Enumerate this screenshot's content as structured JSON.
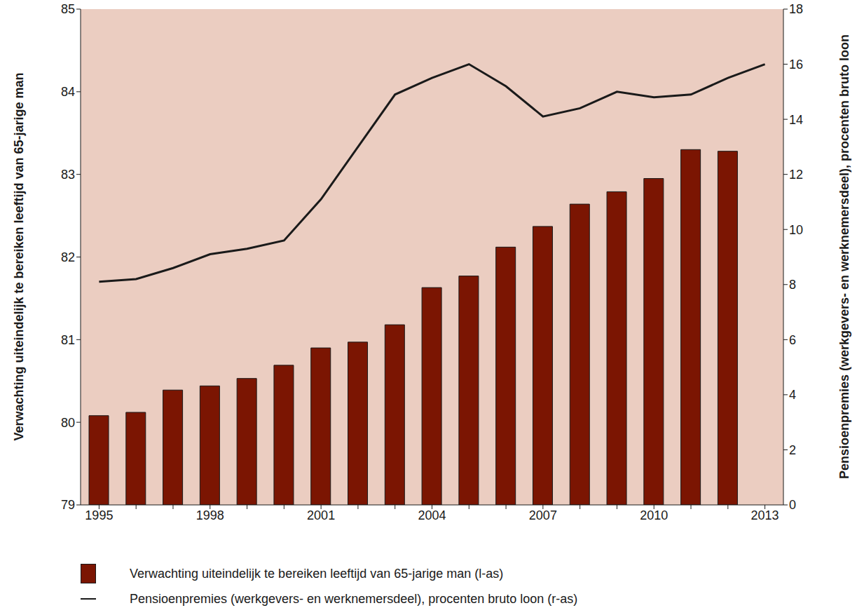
{
  "chart_data": {
    "type": "bar",
    "categories": [
      "1995",
      null,
      null,
      "1998",
      null,
      null,
      "2001",
      null,
      null,
      "2004",
      null,
      null,
      "2007",
      null,
      null,
      "2010",
      null,
      null,
      "2013"
    ],
    "y_label": "Verwachting uiteindelijk te bereiken leeftijd van 65-jarige man",
    "y2_label": "Pensioenpremies (werkgevers- en werknemersdeel), procenten bruto loon",
    "series": [
      {
        "name": "Verwachting uiteindelijk te bereiken leeftijd van 65-jarige man (l-as)",
        "type": "bar",
        "color": "#7b1502",
        "values": [
          80.08,
          80.12,
          80.39,
          80.44,
          80.53,
          80.69,
          80.9,
          80.97,
          81.18,
          81.63,
          81.77,
          82.12,
          82.37,
          82.64,
          82.79,
          82.95,
          83.3,
          83.28,
          null
        ]
      },
      {
        "name": "Pensioenpremies (werkgevers- en werknemersdeel), procenten bruto loon (r-as)",
        "type": "line",
        "axis": "y2",
        "color": "#1a1a1a",
        "values": [
          8.1,
          8.2,
          8.6,
          9.1,
          9.3,
          9.6,
          11.1,
          13.0,
          14.9,
          15.5,
          16.0,
          15.2,
          14.1,
          14.4,
          15.0,
          14.8,
          14.9,
          15.5,
          16.0
        ]
      }
    ],
    "ylim": [
      79,
      85
    ],
    "yticks": [
      79,
      80,
      81,
      82,
      83,
      84,
      85
    ],
    "y2lim": [
      0,
      18
    ],
    "y2ticks": [
      0,
      2,
      4,
      6,
      8,
      10,
      12,
      14,
      16,
      18
    ],
    "grid": false,
    "legend": "bottom"
  }
}
